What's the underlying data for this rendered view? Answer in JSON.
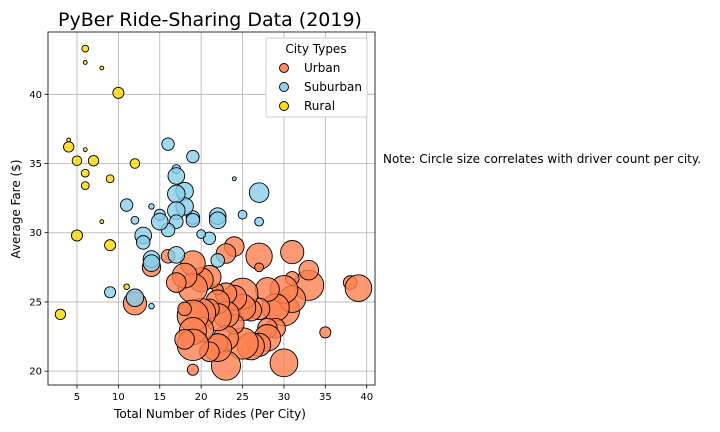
{
  "chart_data": {
    "type": "scatter",
    "title": "PyBer Ride-Sharing Data (2019)",
    "xlabel": "Total Number of Rides (Per City)",
    "ylabel": "Average Fare ($)",
    "xlim": [
      1.5,
      41
    ],
    "ylim": [
      19,
      44.5
    ],
    "xticks": [
      5,
      10,
      15,
      20,
      25,
      30,
      35,
      40
    ],
    "yticks": [
      20,
      25,
      30,
      35,
      40
    ],
    "grid": true,
    "size_encoding": "driver count per city",
    "legend": {
      "title": "City Types",
      "placement": "top-right"
    },
    "note": "Note: Circle size correlates with driver count per city.",
    "series": [
      {
        "name": "Urban",
        "color": "#ff7f50",
        "points": [
          [
            38,
            26.4,
            12
          ],
          [
            39,
            26.0,
            46
          ],
          [
            33,
            26.2,
            58
          ],
          [
            35,
            22.8,
            8
          ],
          [
            31,
            28.6,
            35
          ],
          [
            33,
            27.3,
            25
          ],
          [
            31,
            26.7,
            12
          ],
          [
            30,
            24.4,
            64
          ],
          [
            30,
            20.6,
            50
          ],
          [
            31,
            25.2,
            46
          ],
          [
            30,
            25.9,
            50
          ],
          [
            29,
            24.6,
            48
          ],
          [
            29,
            23.1,
            25
          ],
          [
            28,
            25.9,
            37
          ],
          [
            28,
            23.1,
            25
          ],
          [
            28,
            22.4,
            46
          ],
          [
            27,
            28.3,
            45
          ],
          [
            27,
            24.5,
            30
          ],
          [
            27,
            21.9,
            35
          ],
          [
            26,
            24.4,
            30
          ],
          [
            26,
            21.8,
            48
          ],
          [
            25,
            25.6,
            62
          ],
          [
            25,
            24.6,
            45
          ],
          [
            25,
            22.0,
            64
          ],
          [
            24,
            29.0,
            25
          ],
          [
            24,
            25.3,
            40
          ],
          [
            24,
            23.4,
            25
          ],
          [
            23,
            28.5,
            25
          ],
          [
            23,
            25.6,
            30
          ],
          [
            23,
            24.1,
            45
          ],
          [
            23,
            22.4,
            40
          ],
          [
            23,
            20.4,
            55
          ],
          [
            22,
            25.9,
            8
          ],
          [
            22,
            25.0,
            37
          ],
          [
            22,
            23.9,
            48
          ],
          [
            22,
            22.0,
            25
          ],
          [
            22,
            21.7,
            50
          ],
          [
            21,
            26.8,
            35
          ],
          [
            21,
            24.5,
            25
          ],
          [
            21,
            21.4,
            25
          ],
          [
            20,
            26.6,
            38
          ],
          [
            20,
            24.2,
            55
          ],
          [
            20,
            23.0,
            40
          ],
          [
            19,
            27.8,
            40
          ],
          [
            19,
            26.0,
            55
          ],
          [
            19,
            24.0,
            64
          ],
          [
            19,
            22.9,
            48
          ],
          [
            19,
            21.9,
            64
          ],
          [
            19,
            20.1,
            8
          ],
          [
            18,
            26.9,
            40
          ],
          [
            18,
            24.5,
            12
          ],
          [
            18,
            22.3,
            25
          ],
          [
            17,
            26.4,
            25
          ],
          [
            16,
            28.3,
            12
          ],
          [
            14,
            27.5,
            22
          ],
          [
            12,
            24.9,
            35
          ],
          [
            27,
            27.5,
            5
          ]
        ]
      },
      {
        "name": "Suburban",
        "color": "#87ceeb",
        "points": [
          [
            27,
            32.9,
            25
          ],
          [
            27,
            30.8,
            5
          ],
          [
            25,
            31.3,
            5
          ],
          [
            24,
            33.9,
            1
          ],
          [
            22,
            31.2,
            18
          ],
          [
            22,
            30.9,
            18
          ],
          [
            22,
            28.0,
            12
          ],
          [
            21,
            29.6,
            10
          ],
          [
            20,
            29.9,
            5
          ],
          [
            19,
            35.5,
            10
          ],
          [
            19,
            31.1,
            12
          ],
          [
            19,
            30.9,
            12
          ],
          [
            18,
            33.0,
            20
          ],
          [
            18,
            31.9,
            20
          ],
          [
            17,
            34.6,
            5
          ],
          [
            17,
            34.1,
            18
          ],
          [
            17,
            32.8,
            20
          ],
          [
            17,
            31.6,
            20
          ],
          [
            17,
            30.8,
            12
          ],
          [
            17,
            28.4,
            18
          ],
          [
            16,
            36.4,
            10
          ],
          [
            16,
            30.2,
            12
          ],
          [
            15,
            31.3,
            8
          ],
          [
            15,
            30.8,
            18
          ],
          [
            14,
            31.9,
            2
          ],
          [
            14,
            28.1,
            18
          ],
          [
            14,
            27.8,
            18
          ],
          [
            14,
            24.7,
            2
          ],
          [
            13,
            29.8,
            18
          ],
          [
            13,
            29.3,
            12
          ],
          [
            12,
            30.9,
            4
          ],
          [
            12,
            25.3,
            20
          ],
          [
            11,
            32.0,
            10
          ],
          [
            9,
            25.7,
            8
          ]
        ]
      },
      {
        "name": "Rural",
        "color": "#ffd700",
        "points": [
          [
            6,
            43.3,
            3
          ],
          [
            6,
            42.3,
            1
          ],
          [
            8,
            41.9,
            1
          ],
          [
            10,
            40.1,
            8
          ],
          [
            4,
            36.7,
            1
          ],
          [
            4,
            36.2,
            7
          ],
          [
            6,
            36.0,
            1
          ],
          [
            5,
            35.2,
            6
          ],
          [
            7,
            35.2,
            7
          ],
          [
            12,
            35.0,
            6
          ],
          [
            6,
            34.3,
            4
          ],
          [
            9,
            33.9,
            4
          ],
          [
            6,
            33.4,
            4
          ],
          [
            8,
            30.8,
            1
          ],
          [
            5,
            29.8,
            8
          ],
          [
            9,
            29.1,
            8
          ],
          [
            11,
            26.1,
            2
          ],
          [
            3,
            24.1,
            7
          ]
        ]
      }
    ]
  }
}
